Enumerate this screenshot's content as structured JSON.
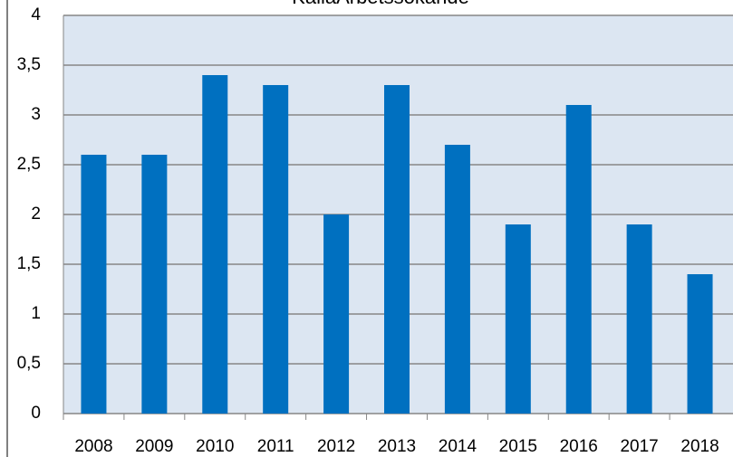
{
  "chart_data": {
    "type": "bar",
    "title": "KallaArbetssökande",
    "categories": [
      "2008",
      "2009",
      "2010",
      "2011",
      "2012",
      "2013",
      "2014",
      "2015",
      "2016",
      "2017",
      "2018"
    ],
    "values": [
      2.6,
      2.6,
      3.4,
      3.3,
      2.0,
      3.3,
      2.7,
      1.9,
      3.1,
      1.9,
      1.4
    ],
    "color": "#0070c0",
    "ylim": [
      0,
      4
    ],
    "yticks": [
      0,
      {
        "value": 0.5,
        "label": "0,5"
      },
      1,
      {
        "value": 1.5,
        "label": "1,5"
      },
      2,
      {
        "value": 2.5,
        "label": "2,5"
      },
      3,
      {
        "value": 3.5,
        "label": "3,5"
      },
      4
    ],
    "grid": true
  }
}
